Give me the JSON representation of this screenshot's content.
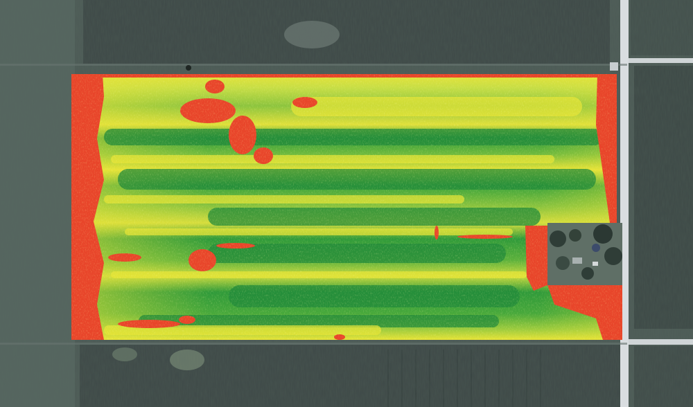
{
  "image": {
    "kind": "aerial-ndvi-crop-health-map",
    "palette": {
      "stress_red": "#e8452a",
      "moderate_yellow": "#e6e337",
      "fair_lightgreen": "#86c23c",
      "healthy_green": "#2f9a3a",
      "dense_darkgreen": "#218a3a",
      "surrounding_fields": "#4b5a55",
      "road": "#d9dde0",
      "farmstead": "#5f6f66"
    },
    "regions": [
      "field-ndvi-overlay",
      "farmstead-cutout",
      "north-road",
      "east-road",
      "surrounding-fields"
    ]
  }
}
